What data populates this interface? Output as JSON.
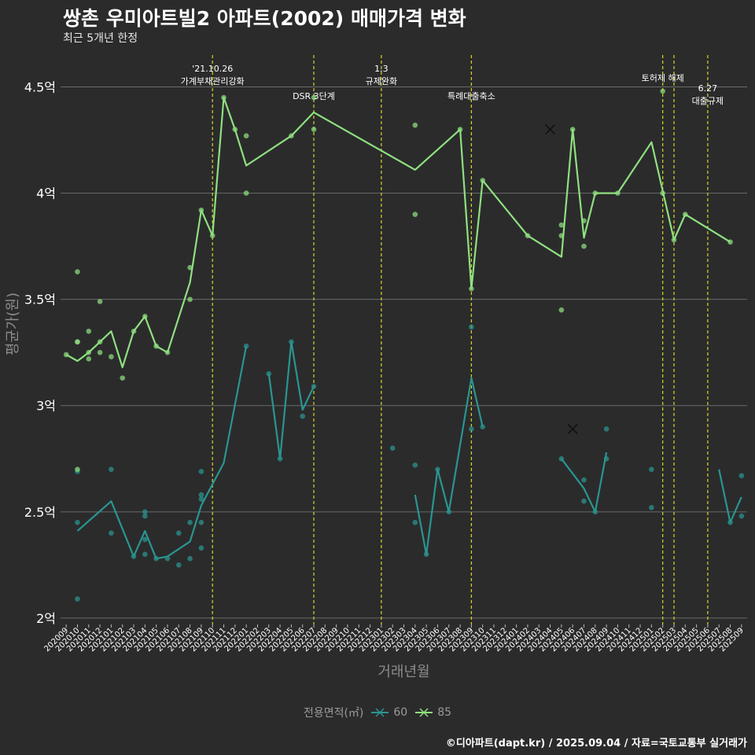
{
  "title": "쌍촌 우미아트빌2 아파트(2002) 매매가격 변화",
  "subtitle": "최근 5개년 한정",
  "caption": "©디아파트(dapt.kr) / 2025.09.04 / 자료=국토교통부 실거래가",
  "legend": {
    "title": "전용면적(㎡)",
    "items": [
      {
        "label": "60",
        "color": "#2a9590"
      },
      {
        "label": "85",
        "color": "#8fe07f"
      }
    ]
  },
  "chart_data": {
    "type": "line",
    "xlabel": "거래년월",
    "ylabel": "평균가(원)",
    "ylim": [
      1.97,
      4.65
    ],
    "yticks": [
      {
        "value": 2,
        "label": "2억"
      },
      {
        "value": 2.5,
        "label": "2.5억"
      },
      {
        "value": 3,
        "label": "3억"
      },
      {
        "value": 3.5,
        "label": "3.5억"
      },
      {
        "value": 4,
        "label": "4억"
      },
      {
        "value": 4.5,
        "label": "4.5억"
      }
    ],
    "categories": [
      "202009",
      "202010",
      "202011",
      "202012",
      "202101",
      "202102",
      "202103",
      "202104",
      "202105",
      "202106",
      "202107",
      "202108",
      "202109",
      "202110",
      "202111",
      "202112",
      "202201",
      "202202",
      "202203",
      "202204",
      "202205",
      "202206",
      "202207",
      "202208",
      "202209",
      "202210",
      "202211",
      "202212",
      "202301",
      "202302",
      "202303",
      "202304",
      "202305",
      "202306",
      "202307",
      "202308",
      "202309",
      "202310",
      "202311",
      "202312",
      "202401",
      "202402",
      "202403",
      "202404",
      "202405",
      "202406",
      "202407",
      "202408",
      "202409",
      "202410",
      "202411",
      "202412",
      "202501",
      "202502",
      "202503",
      "202504",
      "202505",
      "202506",
      "202507",
      "202508",
      "202509"
    ],
    "events": [
      {
        "x": 13,
        "lines": [
          "'21.10.26",
          "가계부채관리강화"
        ],
        "row": 0
      },
      {
        "x": 22,
        "lines": [
          "DSR 3단계"
        ],
        "row": 1
      },
      {
        "x": 28,
        "lines": [
          "1.3",
          "규제완화"
        ],
        "row": 0
      },
      {
        "x": 36,
        "lines": [
          "특례대출축소"
        ],
        "row": 1
      },
      {
        "x": 53,
        "lines": [
          "토허제 해제"
        ],
        "row": 0
      },
      {
        "x": 54,
        "lines": [],
        "row": 0
      },
      {
        "x": 57,
        "lines": [
          "6.27",
          "대출규제"
        ],
        "row": 2
      }
    ],
    "series": [
      {
        "name": "60",
        "color": "#2a9590",
        "line": [
          [
            [
              1,
              2.41
            ],
            [
              4,
              2.55
            ],
            [
              6,
              2.29
            ],
            [
              7,
              2.41
            ],
            [
              8,
              2.28
            ],
            [
              9,
              2.29
            ],
            [
              11,
              2.36
            ],
            [
              12,
              2.53
            ],
            [
              14,
              2.73
            ],
            [
              16,
              3.28
            ]
          ],
          [
            [
              18,
              3.15
            ],
            [
              19,
              2.75
            ],
            [
              20,
              3.3
            ],
            [
              21,
              2.98
            ],
            [
              22,
              3.09
            ]
          ],
          [
            [
              31,
              2.58
            ],
            [
              32,
              2.3
            ],
            [
              33,
              2.7
            ],
            [
              34,
              2.5
            ],
            [
              36,
              3.13
            ],
            [
              37,
              2.9
            ]
          ],
          [
            [
              44,
              2.75
            ],
            [
              46,
              2.61
            ],
            [
              47,
              2.5
            ],
            [
              48,
              2.78
            ]
          ],
          [
            [
              58,
              2.7
            ],
            [
              59,
              2.45
            ],
            [
              60,
              2.57
            ]
          ]
        ],
        "points": [
          [
            1,
            2.69
          ],
          [
            1,
            2.45
          ],
          [
            1,
            2.09
          ],
          [
            4,
            2.7
          ],
          [
            4,
            2.4
          ],
          [
            6,
            2.29
          ],
          [
            7,
            2.5
          ],
          [
            7,
            2.48
          ],
          [
            7,
            2.37
          ],
          [
            7,
            2.3
          ],
          [
            8,
            2.28
          ],
          [
            9,
            2.28
          ],
          [
            10,
            2.25
          ],
          [
            10,
            2.4
          ],
          [
            11,
            2.45
          ],
          [
            11,
            2.28
          ],
          [
            12,
            2.69
          ],
          [
            12,
            2.58
          ],
          [
            12,
            2.56
          ],
          [
            12,
            2.45
          ],
          [
            12,
            2.33
          ],
          [
            16,
            3.28
          ],
          [
            18,
            3.15
          ],
          [
            19,
            2.75
          ],
          [
            20,
            3.3
          ],
          [
            21,
            2.95
          ],
          [
            22,
            3.09
          ],
          [
            29,
            2.8
          ],
          [
            31,
            2.72
          ],
          [
            31,
            2.45
          ],
          [
            32,
            2.3
          ],
          [
            33,
            2.7
          ],
          [
            34,
            2.5
          ],
          [
            36,
            3.37
          ],
          [
            36,
            2.89
          ],
          [
            37,
            2.9
          ],
          [
            44,
            2.75
          ],
          [
            46,
            2.65
          ],
          [
            46,
            2.55
          ],
          [
            47,
            2.5
          ],
          [
            48,
            2.89
          ],
          [
            48,
            2.75
          ],
          [
            52,
            2.7
          ],
          [
            52,
            2.52
          ],
          [
            59,
            2.45
          ],
          [
            60,
            2.67
          ],
          [
            60,
            2.48
          ]
        ],
        "cancelled": [
          [
            45,
            2.89
          ]
        ]
      },
      {
        "name": "85",
        "color": "#8fe07f",
        "line": [
          [
            [
              0,
              3.24
            ],
            [
              1,
              3.21
            ],
            [
              2,
              3.25
            ],
            [
              4,
              3.35
            ],
            [
              5,
              3.18
            ],
            [
              6,
              3.35
            ],
            [
              7,
              3.42
            ],
            [
              8,
              3.28
            ],
            [
              9,
              3.25
            ],
            [
              11,
              3.58
            ],
            [
              12,
              3.92
            ],
            [
              13,
              3.8
            ],
            [
              14,
              4.45
            ],
            [
              15,
              4.3
            ],
            [
              16,
              4.13
            ],
            [
              20,
              4.27
            ],
            [
              22,
              4.38
            ],
            [
              31,
              4.11
            ],
            [
              35,
              4.3
            ],
            [
              36,
              3.55
            ],
            [
              37,
              4.06
            ],
            [
              41,
              3.8
            ],
            [
              44,
              3.7
            ],
            [
              45,
              4.3
            ],
            [
              46,
              3.79
            ],
            [
              47,
              4.0
            ],
            [
              49,
              4.0
            ],
            [
              52,
              4.24
            ],
            [
              54,
              3.78
            ],
            [
              55,
              3.9
            ],
            [
              59,
              3.77
            ]
          ]
        ],
        "points": [
          [
            0,
            3.24
          ],
          [
            1,
            3.63
          ],
          [
            1,
            3.3
          ],
          [
            1,
            2.7
          ],
          [
            1,
            3.3
          ],
          [
            2,
            3.25
          ],
          [
            2,
            3.22
          ],
          [
            2,
            3.35
          ],
          [
            3,
            3.49
          ],
          [
            3,
            3.3
          ],
          [
            3,
            3.25
          ],
          [
            4,
            3.23
          ],
          [
            5,
            3.13
          ],
          [
            6,
            3.35
          ],
          [
            7,
            3.42
          ],
          [
            8,
            3.28
          ],
          [
            9,
            3.25
          ],
          [
            11,
            3.65
          ],
          [
            11,
            3.5
          ],
          [
            12,
            3.92
          ],
          [
            13,
            3.8
          ],
          [
            14,
            4.45
          ],
          [
            15,
            4.3
          ],
          [
            16,
            4.27
          ],
          [
            16,
            4.0
          ],
          [
            20,
            4.27
          ],
          [
            22,
            4.45
          ],
          [
            22,
            4.3
          ],
          [
            31,
            4.32
          ],
          [
            31,
            3.9
          ],
          [
            35,
            4.3
          ],
          [
            36,
            3.55
          ],
          [
            37,
            4.06
          ],
          [
            41,
            3.8
          ],
          [
            44,
            3.85
          ],
          [
            44,
            3.8
          ],
          [
            44,
            3.45
          ],
          [
            45,
            4.3
          ],
          [
            46,
            3.87
          ],
          [
            46,
            3.75
          ],
          [
            47,
            4.0
          ],
          [
            49,
            4.0
          ],
          [
            53,
            4.48
          ],
          [
            53,
            4.0
          ],
          [
            54,
            3.78
          ],
          [
            55,
            3.9
          ],
          [
            59,
            3.77
          ]
        ],
        "cancelled": [
          [
            43,
            4.3
          ]
        ]
      }
    ]
  }
}
